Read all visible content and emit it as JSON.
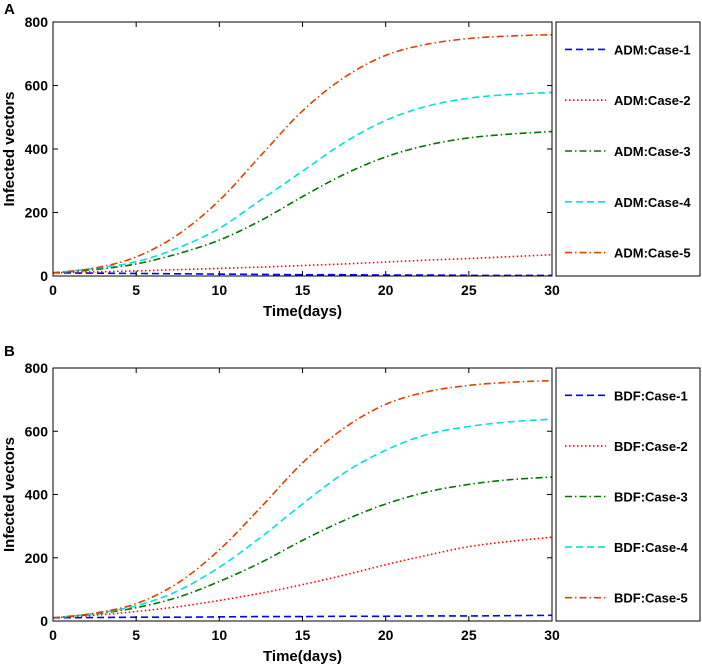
{
  "chart_data": [
    {
      "type": "line",
      "panel_label": "A",
      "xlabel": "Time(days)",
      "ylabel": "Infected vectors",
      "xlim": [
        0,
        30
      ],
      "ylim": [
        0,
        800
      ],
      "xticks": [
        0,
        5,
        10,
        15,
        20,
        25,
        30
      ],
      "yticks": [
        0,
        200,
        400,
        600,
        800
      ],
      "xtick_labels": [
        "0",
        "5",
        "10",
        "15",
        "20",
        "25",
        "30"
      ],
      "ytick_labels": [
        "0",
        "200",
        "400",
        "600",
        "800"
      ],
      "grid": false,
      "legend_position": "right-outside",
      "x": [
        0,
        2.5,
        5,
        7.5,
        10,
        12.5,
        15,
        17.5,
        20,
        22.5,
        25,
        27.5,
        30
      ],
      "series": [
        {
          "name": "ADM:Case-1",
          "color": "#0000ff",
          "dash": "dashed",
          "values": [
            10,
            9,
            8,
            7,
            6,
            5,
            4,
            4,
            3,
            3,
            2,
            2,
            2
          ]
        },
        {
          "name": "ADM:Case-2",
          "color": "#ff0000",
          "dash": "dotted",
          "values": [
            10,
            13,
            16,
            20,
            24,
            28,
            33,
            38,
            44,
            50,
            55,
            61,
            67
          ]
        },
        {
          "name": "ADM:Case-3",
          "color": "#007700",
          "dash": "dashdot",
          "values": [
            10,
            20,
            38,
            70,
            113,
            175,
            250,
            320,
            375,
            412,
            435,
            447,
            455
          ]
        },
        {
          "name": "ADM:Case-4",
          "color": "#00e0e0",
          "dash": "dashed",
          "values": [
            10,
            24,
            45,
            88,
            150,
            240,
            330,
            420,
            490,
            535,
            560,
            572,
            578
          ]
        },
        {
          "name": "ADM:Case-5",
          "color": "#e04000",
          "dash": "dashdot",
          "values": [
            10,
            25,
            60,
            130,
            238,
            380,
            520,
            625,
            695,
            730,
            748,
            756,
            760
          ]
        }
      ]
    },
    {
      "type": "line",
      "panel_label": "B",
      "xlabel": "Time(days)",
      "ylabel": "Infected vectors",
      "xlim": [
        0,
        30
      ],
      "ylim": [
        0,
        800
      ],
      "xticks": [
        0,
        5,
        10,
        15,
        20,
        25,
        30
      ],
      "yticks": [
        0,
        200,
        400,
        600,
        800
      ],
      "xtick_labels": [
        "0",
        "5",
        "10",
        "15",
        "20",
        "25",
        "30"
      ],
      "ytick_labels": [
        "0",
        "200",
        "400",
        "600",
        "800"
      ],
      "grid": false,
      "legend_position": "right-outside",
      "x": [
        0,
        2.5,
        5,
        7.5,
        10,
        12.5,
        15,
        17.5,
        20,
        22.5,
        25,
        27.5,
        30
      ],
      "series": [
        {
          "name": "BDF:Case-1",
          "color": "#0000ff",
          "dash": "dashed",
          "values": [
            10,
            11,
            12,
            12,
            13,
            14,
            14,
            15,
            15,
            16,
            16,
            17,
            18
          ]
        },
        {
          "name": "BDF:Case-2",
          "color": "#ff0000",
          "dash": "dotted",
          "values": [
            10,
            18,
            30,
            45,
            65,
            88,
            115,
            145,
            178,
            208,
            235,
            252,
            265
          ]
        },
        {
          "name": "BDF:Case-3",
          "color": "#007700",
          "dash": "dashdot",
          "values": [
            10,
            22,
            42,
            75,
            125,
            185,
            255,
            318,
            370,
            408,
            432,
            447,
            455
          ]
        },
        {
          "name": "BDF:Case-4",
          "color": "#00e0e0",
          "dash": "dashed",
          "values": [
            10,
            24,
            48,
            95,
            170,
            265,
            370,
            468,
            540,
            590,
            615,
            630,
            638
          ]
        },
        {
          "name": "BDF:Case-5",
          "color": "#e04000",
          "dash": "dashdot",
          "values": [
            10,
            25,
            55,
            120,
            225,
            360,
            500,
            610,
            685,
            725,
            745,
            755,
            760
          ]
        }
      ]
    }
  ]
}
